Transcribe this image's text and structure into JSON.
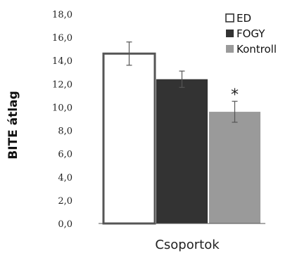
{
  "chart_data": {
    "type": "bar",
    "categories": [
      "ED",
      "FOGY",
      "Kontroll"
    ],
    "values": [
      14.6,
      12.4,
      9.6
    ],
    "errors": [
      1.0,
      0.7,
      0.9
    ],
    "colors": [
      "#ffffff",
      "#333333",
      "#9a9a9a"
    ],
    "xlabel": "Csoportok",
    "ylabel": "BITE átlag",
    "ylim": [
      0,
      18
    ],
    "yticks": [
      "0,0",
      "2,0",
      "4,0",
      "6,0",
      "8,0",
      "10,0",
      "12,0",
      "14,0",
      "16,0",
      "18,0"
    ],
    "legend": [
      "ED",
      "FOGY",
      "Kontroll"
    ],
    "legend_position": "top-right",
    "annotation": "*",
    "grid": false
  }
}
